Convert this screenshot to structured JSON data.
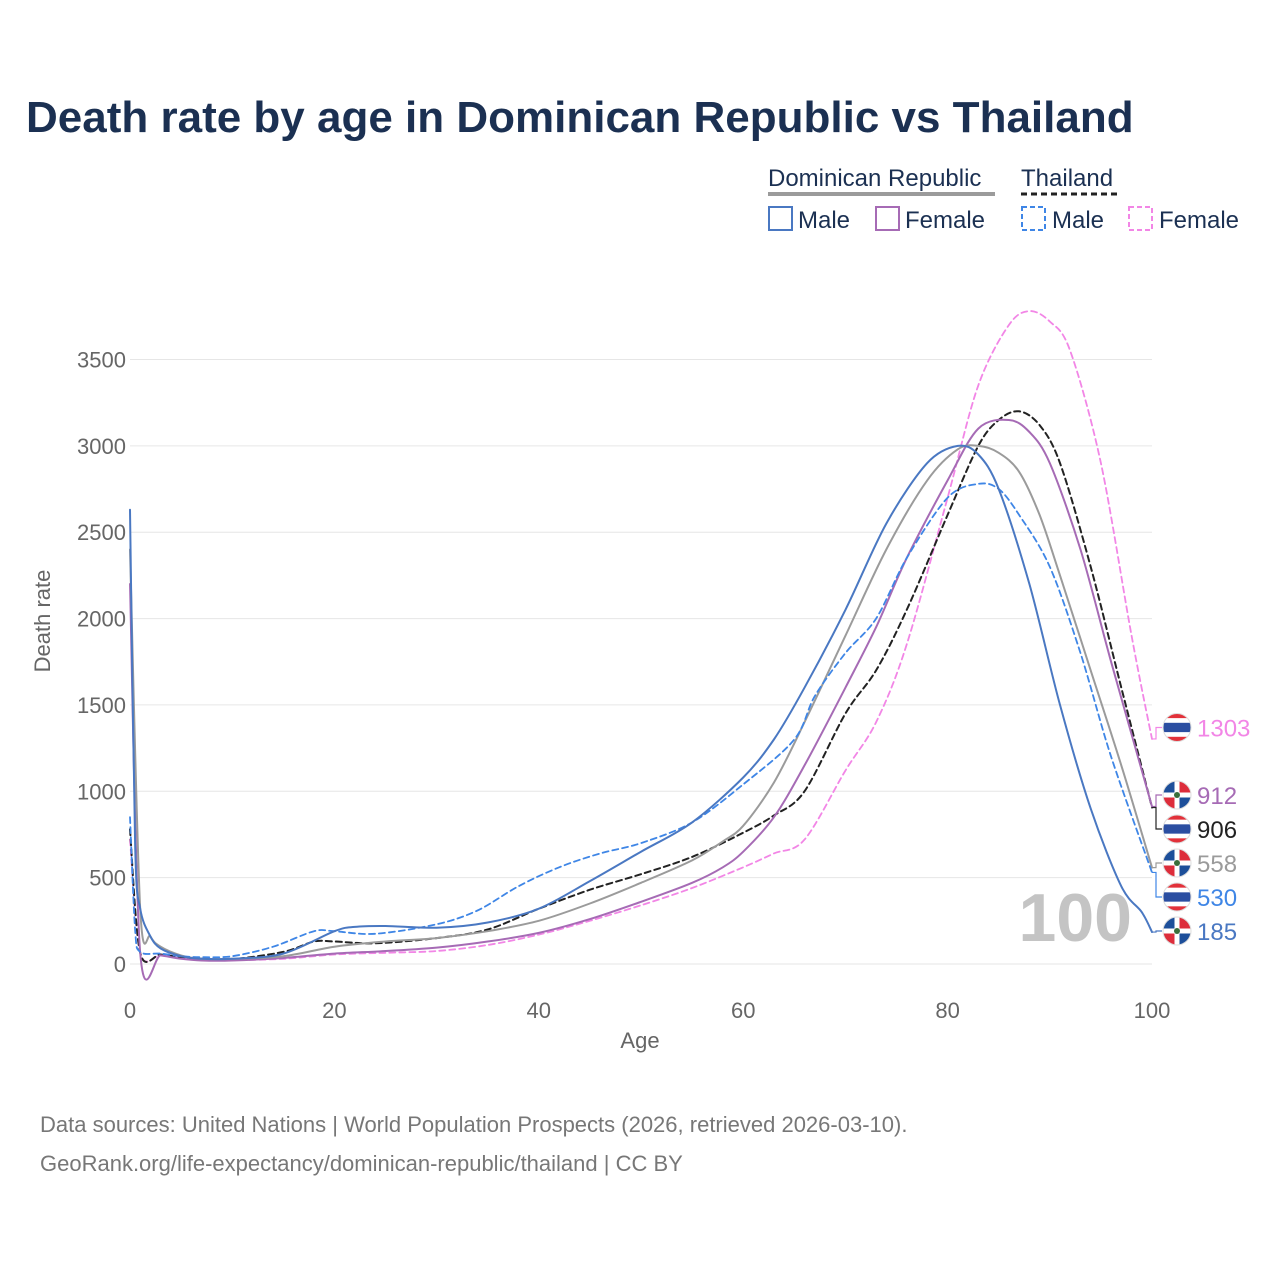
{
  "title": "Death rate by age in Dominican Republic vs Thailand",
  "legend": {
    "groups": [
      {
        "name": "Dominican Republic",
        "items": [
          {
            "label": "Male",
            "color": "#4a78c2",
            "dash": false
          },
          {
            "label": "Female",
            "color": "#a66bb5",
            "dash": false
          }
        ]
      },
      {
        "name": "Thailand",
        "items": [
          {
            "label": "Male",
            "color": "#3f86e6",
            "dash": true
          },
          {
            "label": "Female",
            "color": "#f286e6",
            "dash": true
          }
        ]
      }
    ]
  },
  "colors": {
    "dr_male": "#4a78c2",
    "dr_female": "#a66bb5",
    "dr_total": "#9b9b9b",
    "th_male": "#3f86e6",
    "th_female": "#f286e6",
    "th_total": "#222222",
    "grid": "#e6e6e6"
  },
  "chart_data": {
    "type": "line",
    "title": "Death rate by age in Dominican Republic vs Thailand",
    "xlabel": "Age",
    "ylabel": "Death rate",
    "xlim": [
      0,
      100
    ],
    "ylim": [
      0,
      3800
    ],
    "xticks": [
      0,
      20,
      40,
      60,
      80,
      100
    ],
    "yticks": [
      0,
      500,
      1000,
      1500,
      2000,
      2500,
      3000,
      3500
    ],
    "grid": true,
    "legend_position": "top-right",
    "series": [
      {
        "id": "th_female",
        "name": "Thailand Female",
        "color": "#f286e6",
        "dash": true,
        "width": 1.8,
        "x": [
          0,
          1,
          3,
          5,
          7,
          10,
          15,
          20,
          25,
          30,
          35,
          40,
          45,
          50,
          55,
          60,
          63,
          66,
          70,
          73,
          76,
          80,
          83,
          86,
          88,
          90,
          92,
          95,
          98,
          100
        ],
        "y": [
          720,
          65,
          50,
          35,
          25,
          22,
          30,
          55,
          65,
          75,
          110,
          170,
          250,
          340,
          440,
          560,
          640,
          720,
          1120,
          1400,
          1850,
          2700,
          3350,
          3700,
          3780,
          3720,
          3550,
          2900,
          1900,
          1303
        ]
      },
      {
        "id": "th_total",
        "name": "Thailand Total",
        "color": "#222222",
        "dash": true,
        "width": 2,
        "x": [
          0,
          1,
          3,
          5,
          7,
          10,
          15,
          18,
          20,
          24,
          30,
          35,
          40,
          45,
          50,
          55,
          60,
          63,
          66,
          70,
          73,
          76,
          80,
          83,
          85,
          87,
          89,
          91,
          94,
          97,
          100
        ],
        "y": [
          780,
          65,
          55,
          40,
          30,
          28,
          70,
          130,
          130,
          120,
          150,
          200,
          320,
          430,
          520,
          620,
          760,
          860,
          1000,
          1450,
          1700,
          2050,
          2600,
          3000,
          3150,
          3200,
          3120,
          2900,
          2300,
          1600,
          906
        ]
      },
      {
        "id": "dr_female",
        "name": "Dominican Republic Female",
        "color": "#a66bb5",
        "dash": false,
        "width": 2,
        "x": [
          0,
          1,
          3,
          5,
          7,
          10,
          15,
          20,
          25,
          30,
          35,
          40,
          45,
          50,
          55,
          58,
          60,
          63,
          66,
          70,
          73,
          76,
          80,
          83,
          86,
          88,
          90,
          93,
          96,
          100
        ],
        "y": [
          2200,
          65,
          50,
          30,
          20,
          20,
          35,
          60,
          75,
          95,
          130,
          180,
          260,
          360,
          470,
          560,
          650,
          850,
          1150,
          1600,
          1950,
          2350,
          2800,
          3100,
          3150,
          3080,
          2900,
          2400,
          1750,
          912
        ]
      },
      {
        "id": "dr_total",
        "name": "Dominican Republic Total",
        "color": "#9b9b9b",
        "dash": false,
        "width": 2,
        "x": [
          0,
          1,
          2,
          3,
          5,
          7,
          10,
          15,
          20,
          25,
          30,
          35,
          40,
          45,
          50,
          55,
          58,
          60,
          63,
          66,
          70,
          74,
          78,
          81,
          83,
          85,
          87,
          89,
          91,
          94,
          97,
          100
        ],
        "y": [
          2400,
          320,
          160,
          100,
          50,
          30,
          30,
          45,
          100,
          130,
          150,
          190,
          250,
          350,
          470,
          600,
          710,
          800,
          1050,
          1400,
          1900,
          2400,
          2800,
          2980,
          3000,
          2960,
          2850,
          2600,
          2250,
          1700,
          1150,
          558
        ]
      },
      {
        "id": "th_male",
        "name": "Thailand Male",
        "color": "#3f86e6",
        "dash": true,
        "width": 1.8,
        "x": [
          0,
          0.5,
          1,
          3,
          5,
          7,
          10,
          14,
          18,
          20,
          24,
          30,
          34,
          38,
          42,
          46,
          50,
          55,
          60,
          65,
          67,
          70,
          73,
          76,
          80,
          83,
          85,
          87,
          90,
          93,
          96,
          100
        ],
        "y": [
          850,
          200,
          70,
          60,
          45,
          40,
          45,
          100,
          190,
          190,
          175,
          230,
          310,
          450,
          560,
          640,
          700,
          820,
          1040,
          1300,
          1550,
          1800,
          2000,
          2350,
          2700,
          2780,
          2750,
          2600,
          2300,
          1800,
          1200,
          530
        ]
      },
      {
        "id": "dr_male",
        "name": "Dominican Republic Male",
        "color": "#4a78c2",
        "dash": false,
        "width": 2,
        "x": [
          0,
          0.5,
          1,
          2,
          3,
          5,
          7,
          10,
          15,
          20,
          22,
          25,
          30,
          35,
          40,
          45,
          50,
          55,
          60,
          63,
          66,
          70,
          74,
          78,
          81,
          83,
          85,
          88,
          91,
          94,
          97,
          99,
          100
        ],
        "y": [
          2630,
          700,
          320,
          160,
          90,
          45,
          30,
          30,
          60,
          190,
          215,
          220,
          210,
          240,
          320,
          480,
          650,
          820,
          1080,
          1300,
          1600,
          2050,
          2550,
          2900,
          3000,
          2950,
          2750,
          2200,
          1500,
          900,
          450,
          300,
          185
        ]
      }
    ],
    "end_labels": [
      {
        "series": "th_female",
        "value": "1303",
        "flag": "thailand"
      },
      {
        "series": "dr_female",
        "value": "912",
        "flag": "dominican-republic"
      },
      {
        "series": "th_total",
        "value": "906",
        "flag": "thailand"
      },
      {
        "series": "dr_total",
        "value": "558",
        "flag": "dominican-republic"
      },
      {
        "series": "th_male",
        "value": "530",
        "flag": "thailand"
      },
      {
        "series": "dr_male",
        "value": "185",
        "flag": "dominican-republic"
      }
    ],
    "watermark": "100"
  },
  "source_lines": [
    "Data sources: United Nations | World Population Prospects (2026, retrieved 2026-03-10).",
    "GeoRank.org/life-expectancy/dominican-republic/thailand | CC BY"
  ]
}
